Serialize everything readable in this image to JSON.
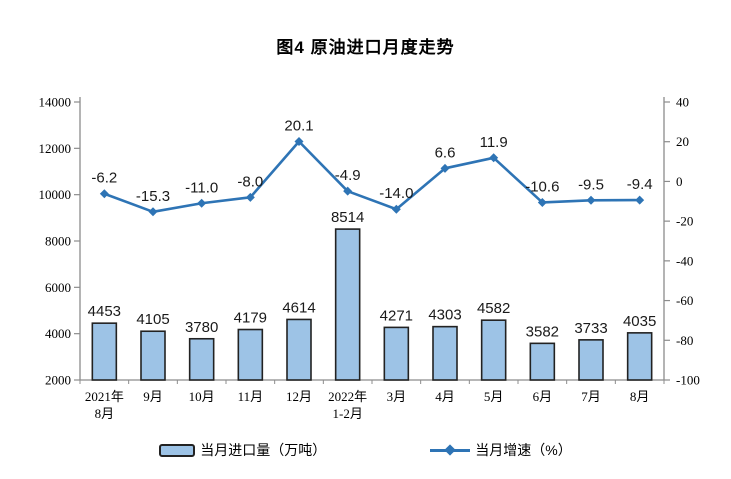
{
  "chart_data": {
    "type": "combo-bar-line",
    "title": "图4 原油进口月度走势",
    "categories": [
      [
        "2021年",
        "8月"
      ],
      [
        "9月"
      ],
      [
        "10月"
      ],
      [
        "11月"
      ],
      [
        "12月"
      ],
      [
        "2022年",
        "1-2月"
      ],
      [
        "3月"
      ],
      [
        "4月"
      ],
      [
        "5月"
      ],
      [
        "6月"
      ],
      [
        "7月"
      ],
      [
        "8月"
      ]
    ],
    "series": [
      {
        "name": "当月进口量（万吨）",
        "type": "bar",
        "axis": "left",
        "values": [
          4453,
          4105,
          3780,
          4179,
          4614,
          8514,
          4271,
          4303,
          4582,
          3582,
          3733,
          4035
        ],
        "labels": [
          "4453",
          "4105",
          "3780",
          "4179",
          "4614",
          "8514",
          "4271",
          "4303",
          "4582",
          "3582",
          "3733",
          "4035"
        ]
      },
      {
        "name": "当月增速（%）",
        "type": "line",
        "axis": "right",
        "values": [
          -6.2,
          -15.3,
          -11.0,
          -8.0,
          20.1,
          -4.9,
          -14.0,
          6.6,
          11.9,
          -10.6,
          -9.5,
          -9.4
        ],
        "labels": [
          "-6.2",
          "-15.3",
          "-11.0",
          "-8.0",
          "20.1",
          "-4.9",
          "-14.0",
          "6.6",
          "11.9",
          "-10.6",
          "-9.5",
          "-9.4"
        ]
      }
    ],
    "left_axis": {
      "min": 2000,
      "max": 14000,
      "ticks": [
        "14000",
        "12000",
        "10000",
        "8000",
        "6000",
        "4000",
        "2000"
      ]
    },
    "right_axis": {
      "min": -100,
      "max": 40,
      "ticks": [
        "40",
        "20",
        "0",
        "-20",
        "-40",
        "-60",
        "-80",
        "-100"
      ]
    },
    "legend_position": "bottom",
    "grid": "off",
    "colors": {
      "bar_fill": "#9DC3E6",
      "bar_border": "#222222",
      "line": "#2E74B5",
      "axis": "#8c8c8c",
      "label_text": "#1a1a1a",
      "tick_text": "#000000"
    }
  }
}
